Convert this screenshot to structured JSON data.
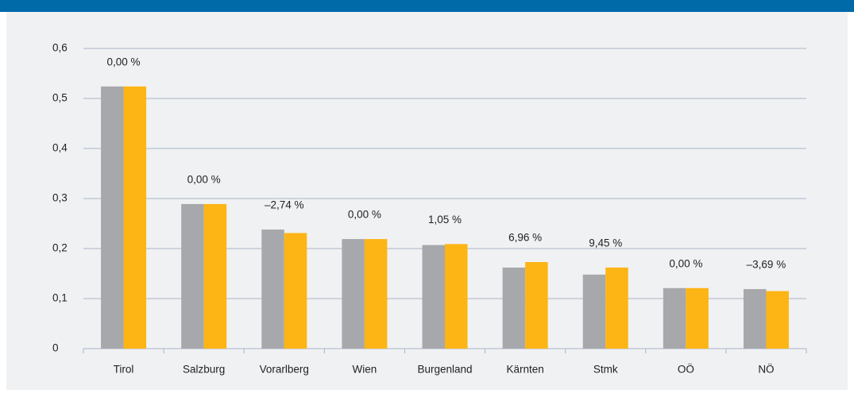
{
  "chart_data": {
    "type": "bar",
    "categories": [
      "Tirol",
      "Salzburg",
      "Vorarlberg",
      "Wien",
      "Burgenland",
      "Kärnten",
      "Stmk",
      "OÖ",
      "NÖ"
    ],
    "series": [
      {
        "color": "#a7a8ab",
        "values": [
          0.524,
          0.289,
          0.238,
          0.219,
          0.207,
          0.162,
          0.148,
          0.121,
          0.119
        ]
      },
      {
        "color": "#fcb514",
        "values": [
          0.524,
          0.289,
          0.231,
          0.219,
          0.209,
          0.173,
          0.162,
          0.121,
          0.115
        ]
      }
    ],
    "annotations": [
      "0,00 %",
      "0,00 %",
      "–2,74 %",
      "0,00 %",
      "1,05 %",
      "6,96 %",
      "9,45 %",
      "0,00 %",
      "–3,69 %"
    ],
    "ylim": [
      0,
      0.6
    ],
    "yticks": [
      0,
      {
        "value": 0.1,
        "label": "0,1"
      },
      {
        "value": 0.2,
        "label": "0,2"
      },
      {
        "value": 0.3,
        "label": "0,3"
      },
      {
        "value": 0.4,
        "label": "0,4"
      },
      {
        "value": 0.5,
        "label": "0,5"
      },
      {
        "value": 0.6,
        "label": "0,6"
      }
    ],
    "grid": true
  }
}
